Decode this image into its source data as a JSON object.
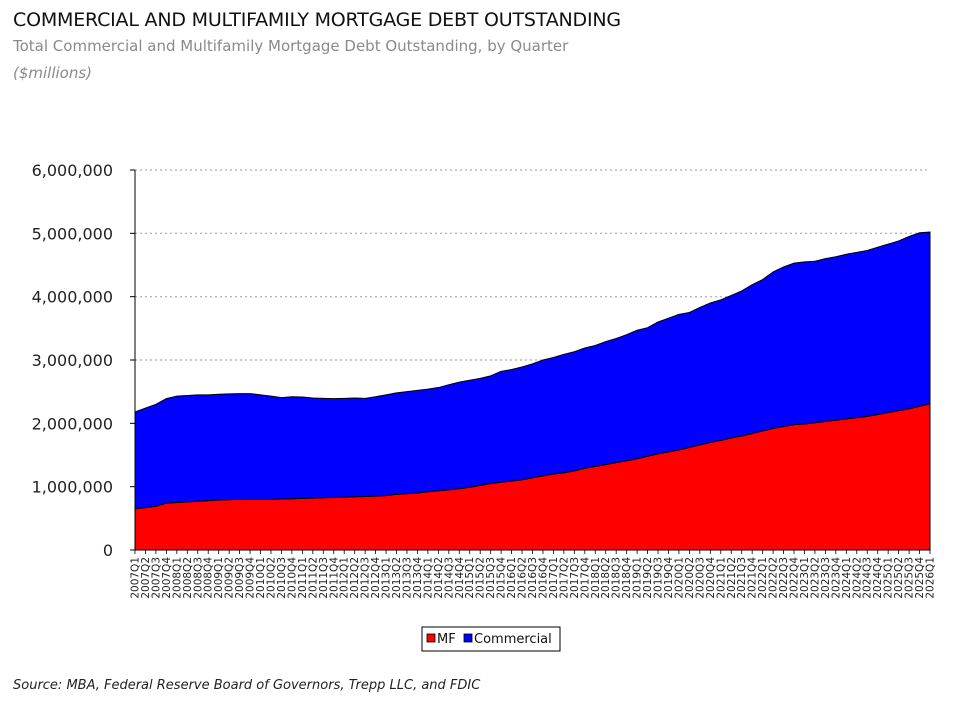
{
  "header": {
    "title": "COMMERCIAL AND MULTIFAMILY MORTGAGE DEBT OUTSTANDING",
    "subtitle": "Total Commercial and Multifamily Mortgage Debt Outstanding, by Quarter",
    "units": "($millions)"
  },
  "footer": {
    "source": "Source:  MBA, Federal Reserve Board of Governors, Trepp LLC, and FDIC"
  },
  "colors": {
    "mf": "#ff0000",
    "commercial": "#0000ff",
    "outline": "#000000",
    "grid": "#b8b8b8"
  },
  "chart_data": {
    "type": "area",
    "stacked": true,
    "title": "",
    "xlabel": "",
    "ylabel": "",
    "ylim": [
      0,
      6000000
    ],
    "yticks": [
      0,
      1000000,
      2000000,
      3000000,
      4000000,
      5000000,
      6000000
    ],
    "ytick_labels": [
      "0",
      "1,000,000",
      "2,000,000",
      "3,000,000",
      "4,000,000",
      "5,000,000",
      "6,000,000"
    ],
    "grid": "horizontal-dashed",
    "legend_position": "bottom-center",
    "x": [
      "2007Q1",
      "2007Q2",
      "2007Q3",
      "2007Q4",
      "2008Q1",
      "2008Q2",
      "2008Q3",
      "2008Q4",
      "2009Q1",
      "2009Q2",
      "2009Q3",
      "2009Q4",
      "2010Q1",
      "2010Q2",
      "2010Q3",
      "2010Q4",
      "2011Q1",
      "2011Q2",
      "2011Q3",
      "2011Q4",
      "2012Q1",
      "2012Q2",
      "2012Q3",
      "2012Q4",
      "2013Q1",
      "2013Q2",
      "2013Q3",
      "2013Q4",
      "2014Q1",
      "2014Q2",
      "2014Q3",
      "2014Q4",
      "2015Q1",
      "2015Q2",
      "2015Q3",
      "2015Q4",
      "2016Q1",
      "2016Q2",
      "2016Q3",
      "2016Q4",
      "2017Q1",
      "2017Q2",
      "2017Q3",
      "2017Q4",
      "2018Q1",
      "2018Q2",
      "2018Q3",
      "2018Q4",
      "2019Q1",
      "2019Q2",
      "2019Q3",
      "2019Q4",
      "2020Q1",
      "2020Q2",
      "2020Q3",
      "2020Q4",
      "2021Q1",
      "2021Q2",
      "2021Q3",
      "2021Q4",
      "2022Q1",
      "2022Q2",
      "2022Q3",
      "2022Q4",
      "2023Q1",
      "2023Q2",
      "2023Q3",
      "2023Q4",
      "2024Q1",
      "2024Q2",
      "2024Q3",
      "2024Q4",
      "2025Q1",
      "2025Q2",
      "2025Q3",
      "2025Q4",
      "2026Q1"
    ],
    "series": [
      {
        "name": "MF",
        "color": "#ff0000",
        "values": [
          650000,
          670000,
          690000,
          740000,
          750000,
          760000,
          770000,
          780000,
          790000,
          795000,
          800000,
          800000,
          800000,
          800000,
          805000,
          810000,
          815000,
          820000,
          825000,
          830000,
          835000,
          840000,
          845000,
          850000,
          860000,
          880000,
          890000,
          900000,
          920000,
          935000,
          950000,
          970000,
          990000,
          1020000,
          1050000,
          1070000,
          1090000,
          1110000,
          1140000,
          1170000,
          1200000,
          1220000,
          1250000,
          1290000,
          1320000,
          1350000,
          1380000,
          1410000,
          1440000,
          1480000,
          1520000,
          1550000,
          1580000,
          1620000,
          1660000,
          1700000,
          1730000,
          1770000,
          1800000,
          1840000,
          1880000,
          1920000,
          1950000,
          1980000,
          1990000,
          2010000,
          2030000,
          2050000,
          2070000,
          2090000,
          2110000,
          2140000,
          2170000,
          2200000,
          2230000,
          2270000,
          2310000
        ]
      },
      {
        "name": "Commercial",
        "color": "#0000ff",
        "values": [
          1530000,
          1570000,
          1610000,
          1650000,
          1680000,
          1680000,
          1680000,
          1670000,
          1670000,
          1670000,
          1670000,
          1670000,
          1650000,
          1630000,
          1600000,
          1610000,
          1600000,
          1580000,
          1570000,
          1560000,
          1560000,
          1560000,
          1550000,
          1570000,
          1590000,
          1600000,
          1610000,
          1620000,
          1620000,
          1630000,
          1660000,
          1680000,
          1690000,
          1690000,
          1700000,
          1750000,
          1760000,
          1780000,
          1800000,
          1830000,
          1840000,
          1870000,
          1880000,
          1900000,
          1910000,
          1940000,
          1960000,
          1990000,
          2030000,
          2030000,
          2080000,
          2110000,
          2140000,
          2130000,
          2170000,
          2200000,
          2220000,
          2250000,
          2290000,
          2350000,
          2390000,
          2470000,
          2520000,
          2550000,
          2560000,
          2550000,
          2570000,
          2580000,
          2600000,
          2610000,
          2620000,
          2640000,
          2660000,
          2680000,
          2720000,
          2740000,
          2710000
        ]
      }
    ]
  }
}
